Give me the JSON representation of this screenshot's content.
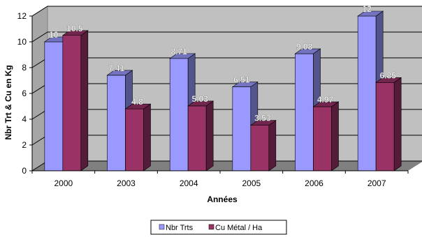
{
  "chart_data": {
    "type": "bar",
    "view": "3d-clustered-column",
    "xlabel": "Années",
    "ylabel": "Nbr Trt & Cu en Kg",
    "categories": [
      "2000",
      "2003",
      "2004",
      "2005",
      "2006",
      "2007"
    ],
    "ylim": [
      0,
      12
    ],
    "yticks": [
      0,
      2,
      4,
      6,
      8,
      10,
      12
    ],
    "grid": true,
    "legend_position": "bottom",
    "series": [
      {
        "name": "Nbr Trts",
        "values": [
          10,
          7.41,
          8.71,
          6.51,
          9.08,
          12
        ],
        "labels": [
          "10",
          "7.41",
          "8.71",
          "6.51",
          "9.08",
          "12"
        ],
        "color": "#9999ff"
      },
      {
        "name": "Cu Métal / Ha",
        "values": [
          10.5,
          4.8,
          5.03,
          3.53,
          4.97,
          6.85
        ],
        "labels": [
          "10.5",
          "4.8",
          "5.03",
          "3.53",
          "4.97",
          "6.85"
        ],
        "color": "#993366"
      }
    ],
    "colors": {
      "wall": "#c0c0c0",
      "floor": "#808080",
      "grid": "#000000",
      "label_light": "#ffffff"
    }
  }
}
